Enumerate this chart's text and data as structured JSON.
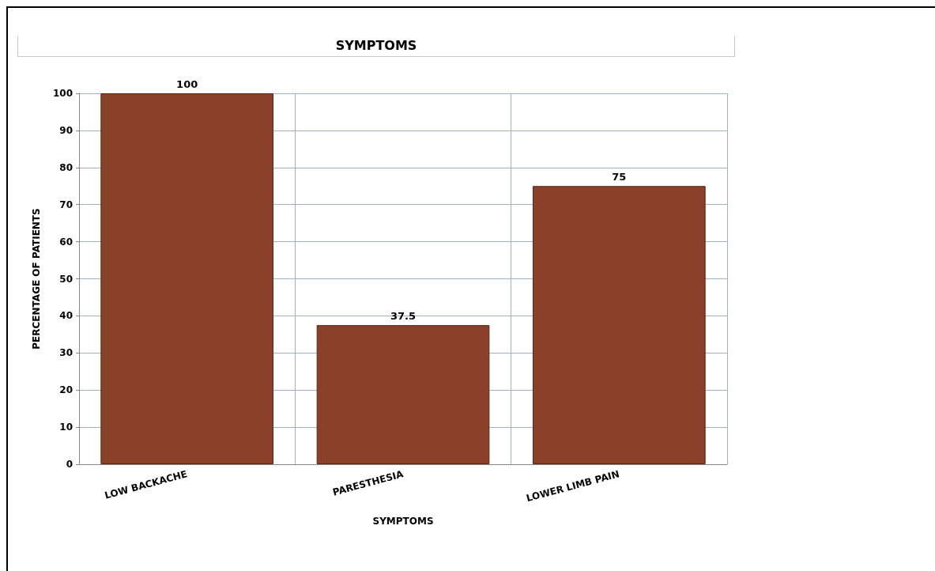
{
  "chart_data": {
    "type": "bar",
    "title": "SYMPTOMS",
    "xlabel": "SYMPTOMS",
    "ylabel": "PERCENTAGE OF PATIENTS",
    "categories": [
      "LOW BACKACHE",
      "PARESTHESIA",
      "LOWER LIMB PAIN"
    ],
    "values": [
      100,
      37.5,
      75
    ],
    "color": "#8b4029",
    "ylim": [
      0,
      100
    ],
    "yticks": [
      0,
      10,
      20,
      30,
      40,
      50,
      60,
      70,
      80,
      90,
      100
    ],
    "grid": true,
    "data_labels": true
  }
}
